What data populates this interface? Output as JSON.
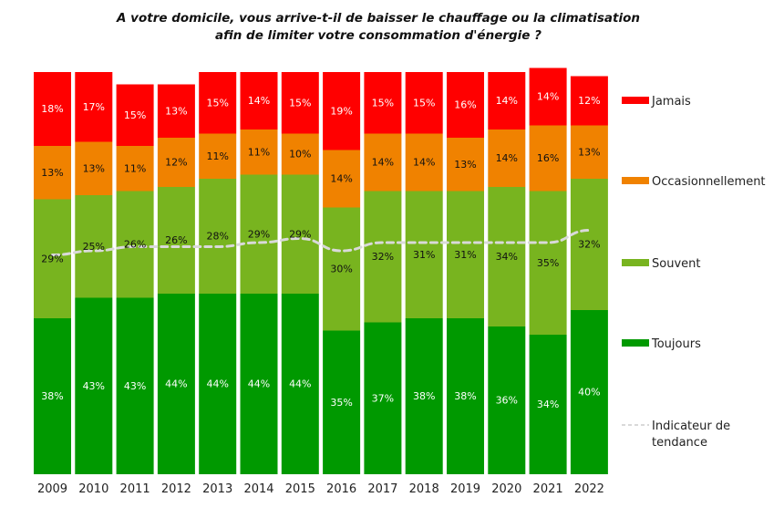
{
  "chart_data": {
    "type": "bar",
    "stacked": true,
    "title": "A votre domicile, vous arrive-t-il de baisser le chauffage ou la climatisation afin de limiter votre consommation d'énergie ?",
    "title_lines": [
      "A votre domicile, vous arrive-t-il de baisser le chauffage ou la climatisation",
      "afin de limiter votre consommation d'énergie ?"
    ],
    "xlabel": "",
    "ylabel": "",
    "ylim": [
      0,
      100
    ],
    "grid": false,
    "legend_position": "right",
    "categories": [
      "2009",
      "2010",
      "2011",
      "2012",
      "2013",
      "2014",
      "2015",
      "2016",
      "2017",
      "2018",
      "2019",
      "2020",
      "2021",
      "2022"
    ],
    "series": [
      {
        "name": "Toujours",
        "color": "#009900",
        "label_color": "#ffffff",
        "values": [
          38,
          43,
          43,
          44,
          44,
          44,
          44,
          35,
          37,
          38,
          38,
          36,
          34,
          40
        ]
      },
      {
        "name": "Souvent",
        "color": "#78b41f",
        "label_color": "#111111",
        "values": [
          29,
          25,
          26,
          26,
          28,
          29,
          29,
          30,
          32,
          31,
          31,
          34,
          35,
          32
        ]
      },
      {
        "name": "Occasionnellement",
        "color": "#f08200",
        "label_color": "#111111",
        "values": [
          13,
          13,
          11,
          12,
          11,
          11,
          10,
          14,
          14,
          14,
          13,
          14,
          16,
          13
        ]
      },
      {
        "name": "Jamais",
        "color": "#ff0000",
        "label_color": "#ffffff",
        "values": [
          18,
          17,
          15,
          13,
          15,
          14,
          15,
          19,
          15,
          15,
          16,
          14,
          14,
          12
        ]
      }
    ],
    "value_suffix": "%",
    "trend": {
      "name": "Indicateur de tendance",
      "color": "#d9d9d9",
      "style": "dashed",
      "values": [
        29,
        30,
        31,
        31,
        31,
        32,
        33,
        30,
        32,
        32,
        32,
        32,
        32,
        35
      ]
    },
    "legend": [
      "Jamais",
      "Occasionnellement",
      "Souvent",
      "Toujours",
      "Indicateur de tendance"
    ]
  }
}
